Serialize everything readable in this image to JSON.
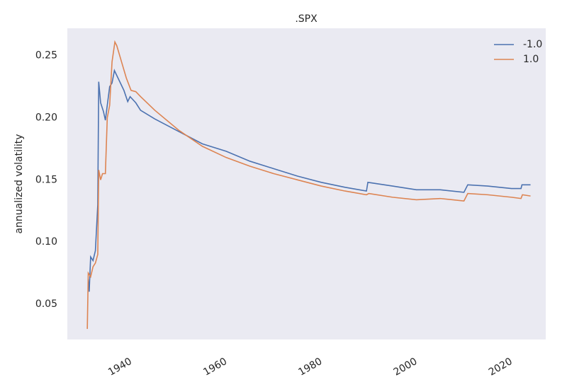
{
  "chart_data": {
    "type": "line",
    "title": ".SPX",
    "ylabel": "annualized volatility",
    "xlim": [
      1926.6,
      2027.2
    ],
    "ylim": [
      0.0215,
      0.272
    ],
    "xticks": [
      1940,
      1960,
      1980,
      2000,
      2020
    ],
    "yticks": [
      0.05,
      {
        "value": 0.1,
        "label": "0.10"
      },
      0.15,
      {
        "value": 0.2,
        "label": "0.20"
      },
      0.25
    ],
    "grid": false,
    "legend": "upper right",
    "series": [
      {
        "name": "-1.0",
        "color": "#4c72b0",
        "x": [
          1931,
          1931.2,
          1931.5,
          1932,
          1932.5,
          1933,
          1933.2,
          1933.6,
          1934.2,
          1934.6,
          1935,
          1935.5,
          1936,
          1936.5,
          1937.5,
          1938.5,
          1939.3,
          1939.8,
          1941,
          1942,
          1945,
          1950,
          1955,
          1960,
          1965,
          1970,
          1975,
          1980,
          1985,
          1989.5,
          1989.8,
          1995,
          2000,
          2005,
          2010,
          2010.8,
          2015,
          2020,
          2022,
          2022.2,
          2024
        ],
        "values": [
          0.07,
          0.06,
          0.088,
          0.085,
          0.093,
          0.13,
          0.229,
          0.212,
          0.205,
          0.198,
          0.21,
          0.225,
          0.228,
          0.238,
          0.23,
          0.222,
          0.213,
          0.217,
          0.212,
          0.206,
          0.199,
          0.189,
          0.179,
          0.173,
          0.165,
          0.159,
          0.153,
          0.148,
          0.144,
          0.141,
          0.148,
          0.145,
          0.142,
          0.142,
          0.14,
          0.146,
          0.145,
          0.143,
          0.143,
          0.146,
          0.146
        ]
      },
      {
        "name": "1.0",
        "color": "#dd8452",
        "x": [
          1930.8,
          1931,
          1931.5,
          1932,
          1932.5,
          1933,
          1933.2,
          1933.6,
          1934,
          1934.6,
          1935,
          1935.5,
          1936,
          1936.6,
          1937,
          1938,
          1939,
          1940,
          1941,
          1942,
          1945,
          1950,
          1955,
          1960,
          1965,
          1970,
          1975,
          1980,
          1985,
          1989.5,
          1990,
          1995,
          2000,
          2005,
          2010,
          2010.8,
          2015,
          2020,
          2022,
          2022.3,
          2024
        ],
        "values": [
          0.03,
          0.075,
          0.072,
          0.08,
          0.083,
          0.09,
          0.158,
          0.15,
          0.155,
          0.155,
          0.2,
          0.21,
          0.245,
          0.261,
          0.258,
          0.245,
          0.232,
          0.222,
          0.221,
          0.217,
          0.206,
          0.19,
          0.177,
          0.168,
          0.161,
          0.155,
          0.15,
          0.145,
          0.141,
          0.138,
          0.139,
          0.136,
          0.134,
          0.135,
          0.133,
          0.139,
          0.138,
          0.136,
          0.135,
          0.138,
          0.137
        ]
      }
    ]
  }
}
